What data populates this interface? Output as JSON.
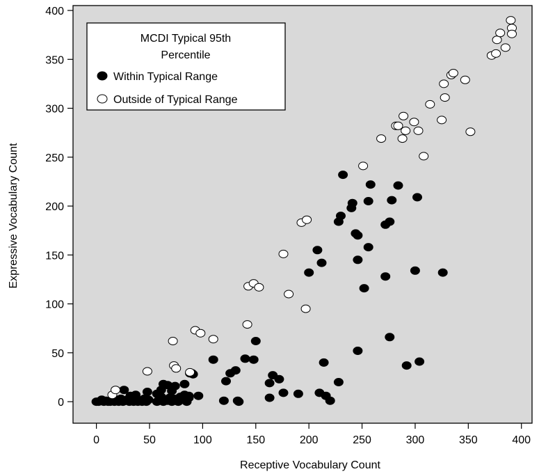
{
  "chart_data": {
    "type": "scatter",
    "title": "",
    "xlabel": "Receptive Vocabulary Count",
    "ylabel": "Expressive Vocabulary Count",
    "xlim": [
      -22,
      410
    ],
    "ylim": [
      -22,
      405
    ],
    "xticks": [
      0,
      50,
      100,
      150,
      200,
      250,
      300,
      350,
      400
    ],
    "yticks": [
      0,
      50,
      100,
      150,
      200,
      250,
      300,
      350,
      400
    ],
    "grid": false,
    "background": "#d9d9d9",
    "legend": {
      "placement": "top-left",
      "title_line1": "MCDI Typical 95th",
      "title_line2": "Percentile"
    },
    "series": [
      {
        "name": "Within Typical Range",
        "marker": "filled-circle",
        "color": "#000000",
        "x": [
          0,
          2,
          5,
          7,
          9,
          11,
          13,
          15,
          17,
          19,
          21,
          23,
          25,
          27,
          29,
          31,
          33,
          35,
          37,
          39,
          41,
          43,
          45,
          47,
          49,
          26,
          32,
          37,
          45,
          48,
          57,
          59,
          61,
          63,
          65,
          67,
          69,
          71,
          73,
          75,
          77,
          79,
          81,
          83,
          85,
          87,
          57,
          61,
          63,
          67,
          71,
          74,
          83,
          87,
          91,
          96,
          88,
          90,
          110,
          120,
          122,
          126,
          131,
          133,
          134,
          140,
          148,
          150,
          163,
          163,
          166,
          172,
          176,
          190,
          210,
          214,
          216,
          220,
          228,
          246,
          200,
          208,
          212,
          230,
          240,
          246,
          252,
          256,
          272,
          276,
          228,
          232,
          241,
          244,
          246,
          256,
          258,
          272,
          276,
          278,
          284,
          292,
          302,
          304,
          300,
          326
        ],
        "y": [
          0,
          0,
          2,
          0,
          1,
          0,
          0,
          1,
          0,
          2,
          0,
          3,
          0,
          1,
          2,
          0,
          3,
          0,
          4,
          0,
          1,
          0,
          3,
          0,
          2,
          12,
          6,
          7,
          2,
          10,
          0,
          2,
          5,
          0,
          2,
          1,
          4,
          0,
          3,
          1,
          0,
          5,
          2,
          7,
          0,
          6,
          8,
          12,
          18,
          17,
          11,
          16,
          18,
          4,
          28,
          6,
          29,
          29,
          43,
          1,
          21,
          29,
          32,
          1,
          0,
          44,
          43,
          62,
          4,
          19,
          27,
          23,
          9,
          8,
          9,
          40,
          6,
          1,
          20,
          52,
          132,
          155,
          142,
          190,
          198,
          145,
          116,
          158,
          128,
          66,
          184,
          232,
          203,
          172,
          170,
          205,
          222,
          181,
          184,
          206,
          221,
          37,
          209,
          41,
          134,
          132
        ]
      },
      {
        "name": "Outside of Typical Range",
        "marker": "open-circle",
        "color": "#000000",
        "x": [
          15,
          18,
          48,
          72,
          73,
          75,
          88,
          93,
          98,
          110,
          142,
          143,
          148,
          153,
          176,
          181,
          193,
          197,
          198,
          251,
          268,
          282,
          284,
          288,
          289,
          291,
          299,
          303,
          308,
          314,
          325,
          327,
          328,
          334,
          336,
          347,
          352,
          372,
          376,
          377,
          380,
          385,
          390,
          391,
          391
        ],
        "y": [
          7,
          12,
          31,
          62,
          37,
          34,
          30,
          73,
          70,
          64,
          79,
          118,
          121,
          117,
          151,
          110,
          183,
          95,
          186,
          241,
          269,
          282,
          282,
          269,
          292,
          277,
          286,
          277,
          251,
          304,
          288,
          325,
          311,
          334,
          336,
          329,
          276,
          354,
          356,
          370,
          377,
          362,
          390,
          382,
          376
        ]
      }
    ]
  }
}
